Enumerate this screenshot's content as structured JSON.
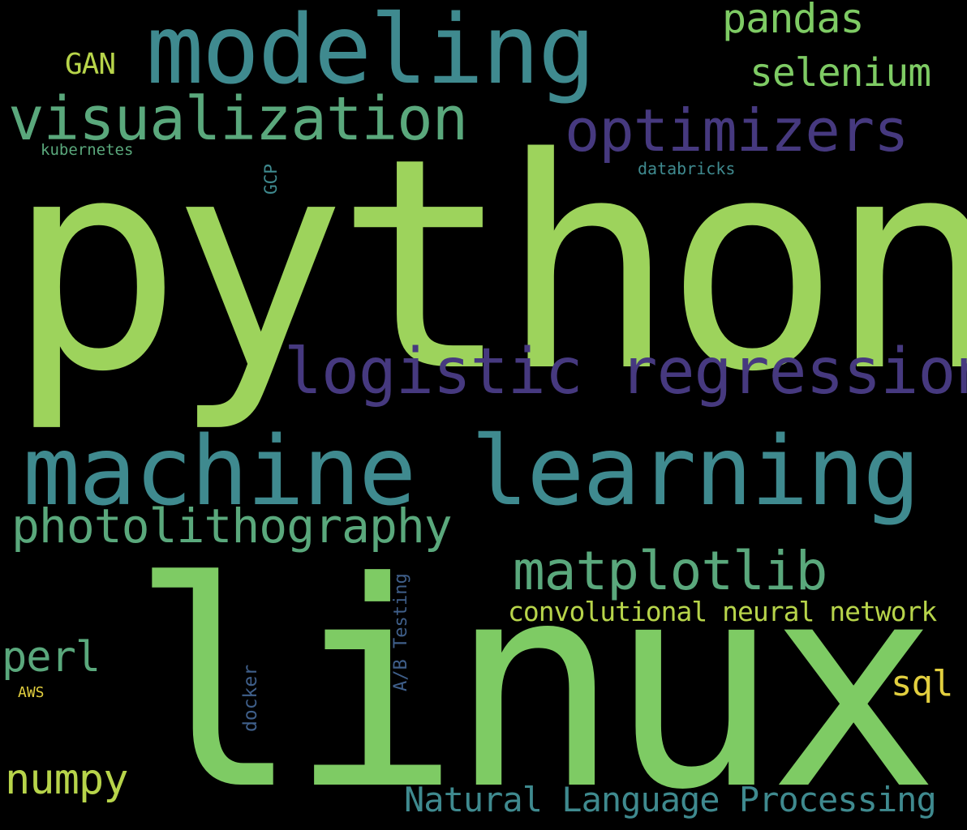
{
  "palette": {
    "background": "#000000",
    "light_green": "#9dd35c",
    "green": "#7ecb64",
    "teal": "#3f8a8f",
    "seafoam": "#5aa87c",
    "purple": "#46397f",
    "slate": "#3f5f8a",
    "yellow_green": "#b7d44a",
    "yellow": "#e2cf3f"
  },
  "words": {
    "python": "python",
    "linux": "linux",
    "machine_learning": "machine learning",
    "modeling": "modeling",
    "logistic_regression": "logistic regression",
    "visualization": "visualization",
    "optimizers": "optimizers",
    "photolithography": "photolithography",
    "matplotlib": "matplotlib",
    "natural_language_processing": "Natural Language Processing",
    "convolutional_neural_network": "convolutional neural network",
    "pandas": "pandas",
    "selenium": "selenium",
    "numpy": "numpy",
    "perl": "perl",
    "sql": "sql",
    "gan": "GAN",
    "kubernetes": "kubernetes",
    "databricks": "databricks",
    "aws": "AWS",
    "gcp": "GCP",
    "ab_testing": "A/B Testing",
    "docker": "docker"
  }
}
